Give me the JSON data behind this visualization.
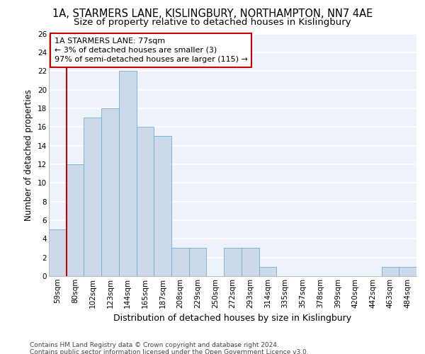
{
  "title1": "1A, STARMERS LANE, KISLINGBURY, NORTHAMPTON, NN7 4AE",
  "title2": "Size of property relative to detached houses in Kislingbury",
  "xlabel": "Distribution of detached houses by size in Kislingbury",
  "ylabel": "Number of detached properties",
  "categories": [
    "59sqm",
    "80sqm",
    "102sqm",
    "123sqm",
    "144sqm",
    "165sqm",
    "187sqm",
    "208sqm",
    "229sqm",
    "250sqm",
    "272sqm",
    "293sqm",
    "314sqm",
    "335sqm",
    "357sqm",
    "378sqm",
    "399sqm",
    "420sqm",
    "442sqm",
    "463sqm",
    "484sqm"
  ],
  "bar_heights": [
    5,
    12,
    17,
    18,
    22,
    16,
    15,
    3,
    3,
    0,
    3,
    3,
    1,
    0,
    0,
    0,
    0,
    0,
    0,
    1,
    1
  ],
  "bar_color": "#ccd9ea",
  "bar_edge_color": "#6aaed6",
  "vline_color": "#cc0000",
  "annotation_text": "1A STARMERS LANE: 77sqm\n← 3% of detached houses are smaller (3)\n97% of semi-detached houses are larger (115) →",
  "annotation_box_color": "#cc0000",
  "ylim": [
    0,
    26
  ],
  "yticks": [
    0,
    2,
    4,
    6,
    8,
    10,
    12,
    14,
    16,
    18,
    20,
    22,
    24,
    26
  ],
  "background_color": "#eef2fa",
  "grid_color": "#ffffff",
  "footer": "Contains HM Land Registry data © Crown copyright and database right 2024.\nContains public sector information licensed under the Open Government Licence v3.0.",
  "title1_fontsize": 10.5,
  "title2_fontsize": 9.5,
  "xlabel_fontsize": 9,
  "ylabel_fontsize": 8.5,
  "tick_fontsize": 7.5,
  "footer_fontsize": 6.5,
  "ann_fontsize": 8
}
